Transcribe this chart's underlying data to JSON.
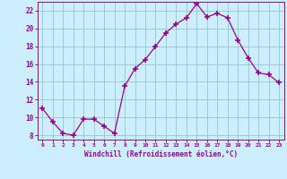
{
  "x": [
    0,
    1,
    2,
    3,
    4,
    5,
    6,
    7,
    8,
    9,
    10,
    11,
    12,
    13,
    14,
    15,
    16,
    17,
    18,
    19,
    20,
    21,
    22,
    23
  ],
  "y": [
    11.0,
    9.5,
    8.2,
    8.0,
    9.8,
    9.8,
    9.0,
    8.2,
    13.5,
    15.5,
    16.5,
    18.0,
    19.5,
    20.5,
    21.2,
    22.8,
    21.3,
    21.7,
    21.2,
    18.7,
    16.7,
    15.0,
    14.8,
    13.9
  ],
  "line_color": "#990099",
  "marker": "+",
  "marker_size": 4,
  "marker_lw": 1.2,
  "bg_color": "#cceeff",
  "grid_color": "#99cccc",
  "xlabel": "Windchill (Refroidissement éolien,°C)",
  "xlabel_color": "#990099",
  "tick_color": "#990099",
  "xlim": [
    -0.5,
    23.5
  ],
  "ylim": [
    7.5,
    23.0
  ],
  "yticks": [
    8,
    10,
    12,
    14,
    16,
    18,
    20,
    22
  ],
  "xticks": [
    0,
    1,
    2,
    3,
    4,
    5,
    6,
    7,
    8,
    9,
    10,
    11,
    12,
    13,
    14,
    15,
    16,
    17,
    18,
    19,
    20,
    21,
    22,
    23
  ]
}
